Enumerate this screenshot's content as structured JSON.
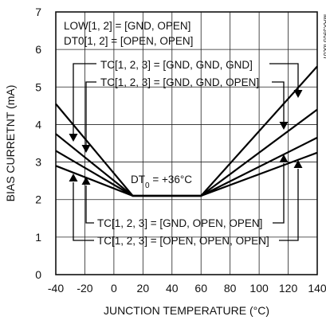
{
  "chart_data": {
    "type": "line",
    "title": "",
    "xlabel": "JUNCTION TEMPERATURE (°C)",
    "ylabel": "BIAS CURREТNT (mA)",
    "xlim": [
      -40,
      140
    ],
    "ylim": [
      0,
      7
    ],
    "x_ticks": [
      "-40",
      "-20",
      "0",
      "20",
      "40",
      "60",
      "80",
      "100",
      "120",
      "140"
    ],
    "y_ticks": [
      "0",
      "1",
      "2",
      "3",
      "4",
      "5",
      "6",
      "7"
    ],
    "grid": true,
    "figure_id": "MAX3905 toc07",
    "conditions": [
      "LOW[1, 2] = [GND, OPEN]",
      "DT0[1, 2] = [OPEN, OPEN]"
    ],
    "dt0_label": {
      "prefix": "DT",
      "sub": "0",
      "suffix": " = +36°C"
    },
    "series": [
      {
        "label": "TC[1, 2, 3] = [GND, GND, GND]",
        "x": [
          -40,
          13,
          60,
          140
        ],
        "y": [
          4.55,
          2.1,
          2.1,
          5.55
        ]
      },
      {
        "label": "TC[1, 2, 3] = [GND, GND, OPEN]",
        "x": [
          -40,
          13,
          60,
          140
        ],
        "y": [
          3.75,
          2.1,
          2.1,
          4.4
        ]
      },
      {
        "label": "TC[1, 2, 3] = [GND, OPEN, OPEN]",
        "x": [
          -40,
          13,
          60,
          140
        ],
        "y": [
          3.3,
          2.1,
          2.1,
          3.65
        ]
      },
      {
        "label": "TC[1, 2, 3] = [OPEN, OPEN, OPEN]",
        "x": [
          -40,
          13,
          60,
          140
        ],
        "y": [
          2.9,
          2.1,
          2.1,
          3.25
        ]
      }
    ]
  }
}
